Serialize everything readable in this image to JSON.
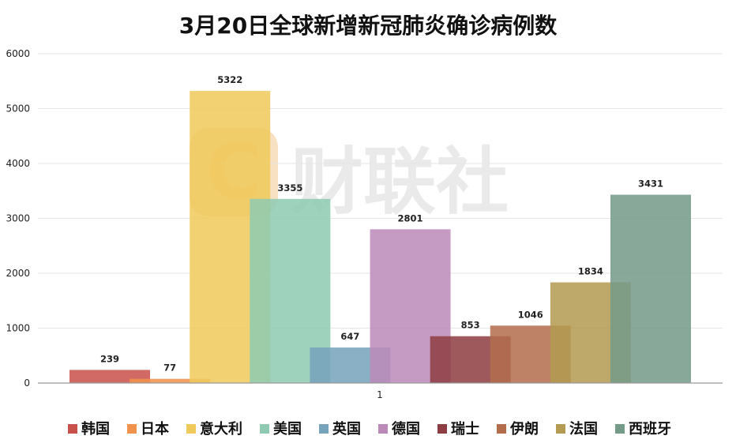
{
  "chart_data": {
    "type": "bar",
    "title": "3月20日全球新增新冠肺炎确诊病例数",
    "categories": [
      "1"
    ],
    "series": [
      {
        "name": "韩国",
        "values": [
          239
        ],
        "color": "#c9514b"
      },
      {
        "name": "日本",
        "values": [
          77
        ],
        "color": "#f0924b"
      },
      {
        "name": "意大利",
        "values": [
          5322
        ],
        "color": "#f0c95b"
      },
      {
        "name": "美国",
        "values": [
          3355
        ],
        "color": "#8fcbb2"
      },
      {
        "name": "英国",
        "values": [
          647
        ],
        "color": "#77a3bb"
      },
      {
        "name": "德国",
        "values": [
          2801
        ],
        "color": "#bc8ab9"
      },
      {
        "name": "瑞士",
        "values": [
          853
        ],
        "color": "#8e3e42"
      },
      {
        "name": "伊朗",
        "values": [
          1046
        ],
        "color": "#b36d4d"
      },
      {
        "name": "法国",
        "values": [
          1834
        ],
        "color": "#b39b51"
      },
      {
        "name": "西班牙",
        "values": [
          3431
        ],
        "color": "#749a88"
      }
    ],
    "xlabel": "",
    "ylabel": "",
    "ylim": [
      0,
      6000
    ],
    "yticks": [
      0,
      1000,
      2000,
      3000,
      4000,
      5000,
      6000
    ],
    "grid": true,
    "legend_position": "bottom",
    "watermark": "财联社"
  }
}
